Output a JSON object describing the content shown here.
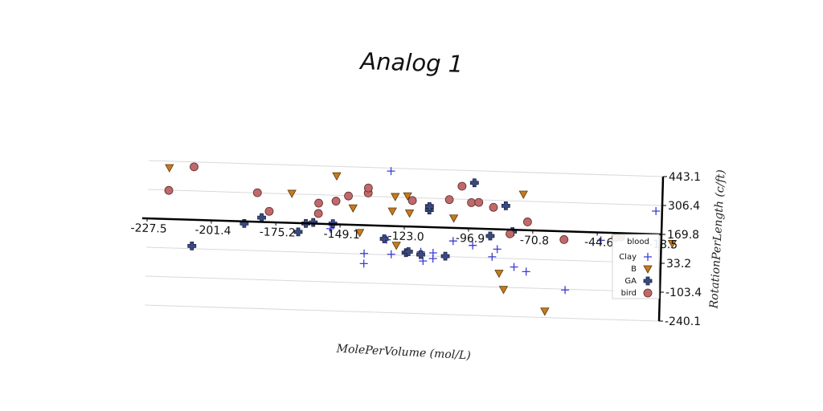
{
  "chart_data": {
    "type": "scatter",
    "title": "Analog 1",
    "xlabel": "MolePerVolume (mol/L)",
    "ylabel": "RotationPerLength (c/ft)",
    "xlim": [
      -227.5,
      -18.5
    ],
    "ylim": [
      -240.1,
      443.1
    ],
    "x_ticks": [
      "-227.5",
      "-201.4",
      "-175.2",
      "-149.1",
      "-123.0",
      "-96.9",
      "-70.8",
      "-44.6",
      "-18.5"
    ],
    "y_ticks": [
      "443.1",
      "306.4",
      "169.8",
      "33.2",
      "-103.4",
      "-240.1"
    ],
    "grid": true,
    "legend": {
      "title": "blood",
      "placement": "lower-right"
    },
    "colors": {
      "Clay": "#3b3bd9",
      "B": "#c47a1e",
      "GA": "#3a4a80",
      "bird": "#c0686a"
    },
    "series": [
      {
        "name": "Clay",
        "marker": "plus",
        "points": [
          [
            -129,
            429
          ],
          [
            -153,
            148
          ],
          [
            -139,
            36
          ],
          [
            -139,
            -12
          ],
          [
            -130,
            104
          ],
          [
            -128,
            36
          ],
          [
            -116,
            52
          ],
          [
            -115,
            9
          ],
          [
            -111,
            22
          ],
          [
            -111,
            49
          ],
          [
            -103,
            108
          ],
          [
            -95,
            90
          ],
          [
            -87,
            39
          ],
          [
            -85,
            76
          ],
          [
            -78,
            -6
          ],
          [
            -73,
            -26
          ],
          [
            -57,
            -107
          ],
          [
            -43,
            133
          ],
          [
            -21,
            279
          ]
        ]
      },
      {
        "name": "B",
        "marker": "triangle",
        "points": [
          [
            -219,
            412
          ],
          [
            -169,
            309
          ],
          [
            -151,
            398
          ],
          [
            -144,
            249
          ],
          [
            -141,
            134
          ],
          [
            -128,
            240
          ],
          [
            -127,
            309
          ],
          [
            -126,
            79
          ],
          [
            -122,
            314
          ],
          [
            -121,
            233
          ],
          [
            -113,
            262
          ],
          [
            -103,
            216
          ],
          [
            -84,
            -38
          ],
          [
            -82,
            -114
          ],
          [
            -75,
            339
          ],
          [
            -65,
            -210
          ],
          [
            -14,
            128
          ]
        ]
      },
      {
        "name": "GA",
        "marker": "cross",
        "points": [
          [
            -209,
            46
          ],
          [
            -188,
            160
          ],
          [
            -181,
            190
          ],
          [
            -166,
            128
          ],
          [
            -163,
            169
          ],
          [
            -160,
            175
          ],
          [
            -152,
            172
          ],
          [
            -131,
            108
          ],
          [
            -122,
            46
          ],
          [
            -121,
            51
          ],
          [
            -116,
            39
          ],
          [
            -113,
            251
          ],
          [
            -113,
            267
          ],
          [
            -106,
            35
          ],
          [
            -95,
            386
          ],
          [
            -88,
            137
          ],
          [
            -82,
            282
          ],
          [
            -79,
            161
          ]
        ]
      },
      {
        "name": "bird",
        "marker": "circle",
        "points": [
          [
            -219,
            305
          ],
          [
            -209,
            420
          ],
          [
            -183,
            307
          ],
          [
            -178,
            221
          ],
          [
            -158,
            267
          ],
          [
            -158,
            218
          ],
          [
            -151,
            279
          ],
          [
            -146,
            305
          ],
          [
            -138,
            322
          ],
          [
            -138,
            346
          ],
          [
            -120,
            293
          ],
          [
            -105,
            303
          ],
          [
            -100,
            368
          ],
          [
            -96,
            292
          ],
          [
            -93,
            294
          ],
          [
            -87,
            273
          ],
          [
            -80,
            150
          ],
          [
            -73,
            209
          ],
          [
            -58,
            131
          ],
          [
            -35,
            152
          ],
          [
            -37,
            149
          ]
        ]
      }
    ]
  }
}
